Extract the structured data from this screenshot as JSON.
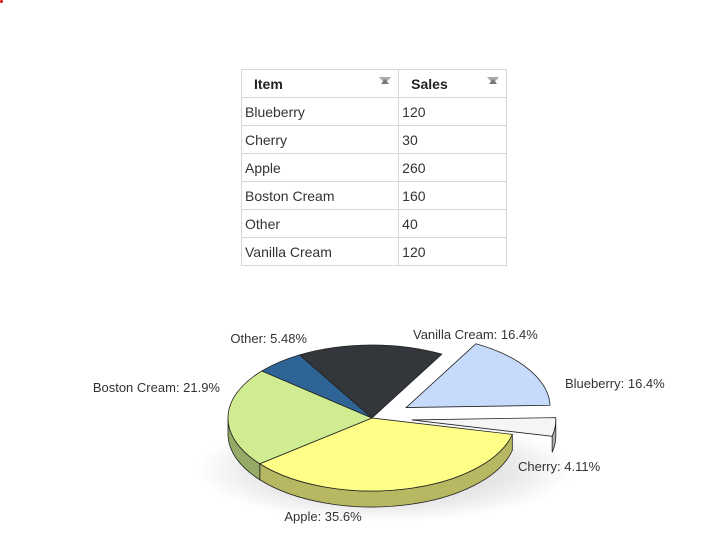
{
  "table": {
    "headers": [
      "Item",
      "Sales"
    ],
    "rows": [
      {
        "item": "Blueberry",
        "sales": "120"
      },
      {
        "item": "Cherry",
        "sales": "30"
      },
      {
        "item": "Apple",
        "sales": "260"
      },
      {
        "item": "Boston Cream",
        "sales": "160"
      },
      {
        "item": "Other",
        "sales": "40"
      },
      {
        "item": "Vanilla Cream",
        "sales": "120"
      }
    ]
  },
  "chart_data": {
    "type": "pie",
    "title": "",
    "slices": [
      {
        "name": "Blueberry",
        "value": 120,
        "label": "Blueberry: 16.4%",
        "color": "#c6dafc",
        "exploded": true
      },
      {
        "name": "Cherry",
        "value": 30,
        "label": "Cherry: 4.11%",
        "color": "#f5f5f5",
        "exploded": true
      },
      {
        "name": "Apple",
        "value": 260,
        "label": "Apple: 35.6%",
        "color": "#ffff88",
        "exploded": false
      },
      {
        "name": "Boston Cream",
        "value": 160,
        "label": "Boston Cream: 21.9%",
        "color": "#d0ec90",
        "exploded": false
      },
      {
        "name": "Other",
        "value": 40,
        "label": "Other: 5.48%",
        "color": "#2f6497",
        "exploded": false
      },
      {
        "name": "Vanilla Cream",
        "value": 120,
        "label": "Vanilla Cream: 16.4%",
        "color": "#33363a",
        "exploded": false
      }
    ],
    "style": "3d"
  }
}
